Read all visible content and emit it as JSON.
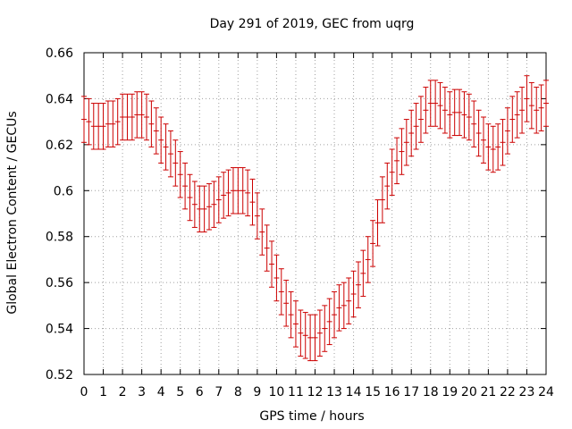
{
  "chart_data": {
    "type": "scatter",
    "title": "Day 291 of 2019, GEC from uqrg",
    "xlabel": "GPS time / hours",
    "ylabel": "Global Electron Content / GECUs",
    "xlim": [
      0,
      24
    ],
    "ylim": [
      0.52,
      0.66
    ],
    "xticks": [
      "0",
      "1",
      "2",
      "3",
      "4",
      "5",
      "6",
      "7",
      "8",
      "9",
      "10",
      "11",
      "12",
      "13",
      "14",
      "15",
      "16",
      "17",
      "18",
      "19",
      "20",
      "21",
      "22",
      "23",
      "24"
    ],
    "yticks": [
      "0.52",
      "0.54",
      "0.56",
      "0.58",
      "0.6",
      "0.62",
      "0.64",
      "0.66"
    ],
    "grid": true,
    "series": [
      {
        "name": "GEC",
        "color": "#cc0000",
        "x": [
          0,
          0.25,
          0.5,
          0.75,
          1,
          1.25,
          1.5,
          1.75,
          2,
          2.25,
          2.5,
          2.75,
          3,
          3.25,
          3.5,
          3.75,
          4,
          4.25,
          4.5,
          4.75,
          5,
          5.25,
          5.5,
          5.75,
          6,
          6.25,
          6.5,
          6.75,
          7,
          7.25,
          7.5,
          7.75,
          8,
          8.25,
          8.5,
          8.75,
          9,
          9.25,
          9.5,
          9.75,
          10,
          10.25,
          10.5,
          10.75,
          11,
          11.25,
          11.5,
          11.75,
          12,
          12.25,
          12.5,
          12.75,
          13,
          13.25,
          13.5,
          13.75,
          14,
          14.25,
          14.5,
          14.75,
          15,
          15.25,
          15.5,
          15.75,
          16,
          16.25,
          16.5,
          16.75,
          17,
          17.25,
          17.5,
          17.75,
          18,
          18.25,
          18.5,
          18.75,
          19,
          19.25,
          19.5,
          19.75,
          20,
          20.25,
          20.5,
          20.75,
          21,
          21.25,
          21.5,
          21.75,
          22,
          22.25,
          22.5,
          22.75,
          23,
          23.25,
          23.5,
          23.75,
          24
        ],
        "values": [
          0.631,
          0.63,
          0.628,
          0.628,
          0.628,
          0.629,
          0.629,
          0.63,
          0.632,
          0.632,
          0.632,
          0.633,
          0.633,
          0.632,
          0.629,
          0.626,
          0.622,
          0.619,
          0.616,
          0.612,
          0.607,
          0.602,
          0.597,
          0.594,
          0.592,
          0.592,
          0.593,
          0.594,
          0.596,
          0.598,
          0.599,
          0.6,
          0.6,
          0.6,
          0.599,
          0.595,
          0.589,
          0.582,
          0.575,
          0.568,
          0.562,
          0.556,
          0.551,
          0.546,
          0.542,
          0.538,
          0.537,
          0.536,
          0.536,
          0.538,
          0.54,
          0.543,
          0.546,
          0.549,
          0.55,
          0.552,
          0.555,
          0.559,
          0.564,
          0.57,
          0.577,
          0.586,
          0.596,
          0.602,
          0.608,
          0.613,
          0.617,
          0.621,
          0.625,
          0.628,
          0.631,
          0.635,
          0.638,
          0.638,
          0.637,
          0.635,
          0.633,
          0.634,
          0.634,
          0.633,
          0.632,
          0.629,
          0.625,
          0.622,
          0.619,
          0.618,
          0.619,
          0.621,
          0.626,
          0.631,
          0.633,
          0.635,
          0.64,
          0.637,
          0.635,
          0.636,
          0.638
        ],
        "error": 0.01
      }
    ]
  }
}
